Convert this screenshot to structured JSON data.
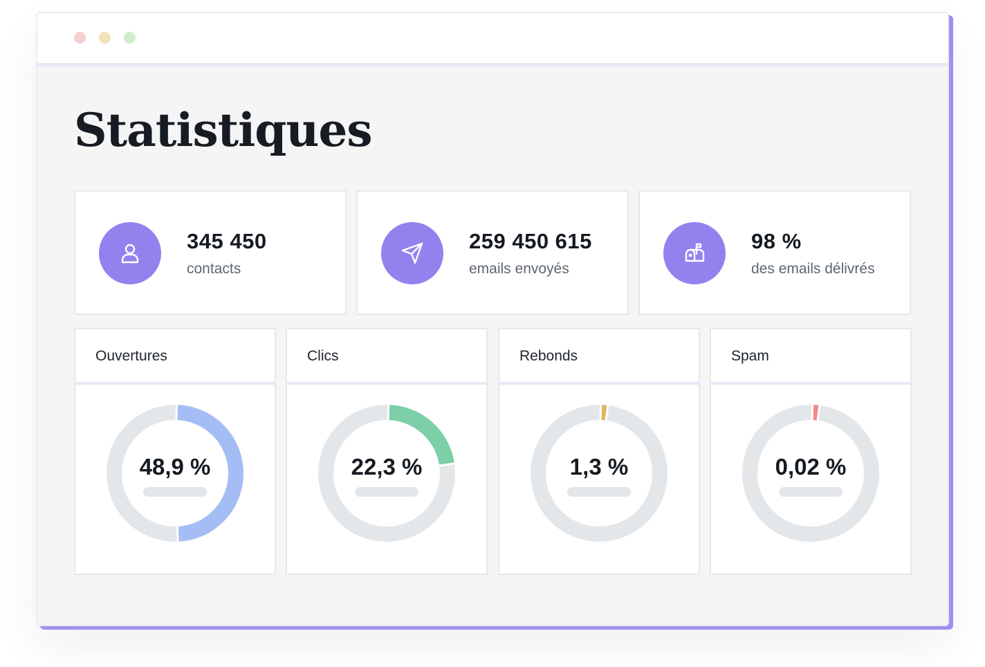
{
  "page_title": "Statistiques",
  "stats": [
    {
      "value": "345 450",
      "label": "contacts",
      "icon": "user-icon"
    },
    {
      "value": "259 450 615",
      "label": "emails envoyés",
      "icon": "send-icon"
    },
    {
      "value": "98 %",
      "label": "des emails délivrés",
      "icon": "mailbox-icon"
    }
  ],
  "metrics": [
    {
      "label": "Ouvertures",
      "value": "48,9 %",
      "percent": 48.9,
      "color": "#a5bdf5"
    },
    {
      "label": "Clics",
      "value": "22,3 %",
      "percent": 22.3,
      "color": "#7ccfa7"
    },
    {
      "label": "Rebonds",
      "value": "1,3 %",
      "percent": 1.3,
      "color": "#e3b560"
    },
    {
      "label": "Spam",
      "value": "0,02 %",
      "percent": 0.02,
      "color": "#ee8a8a"
    }
  ],
  "colors": {
    "accent": "#9581ee",
    "track": "#e3e7ea"
  }
}
